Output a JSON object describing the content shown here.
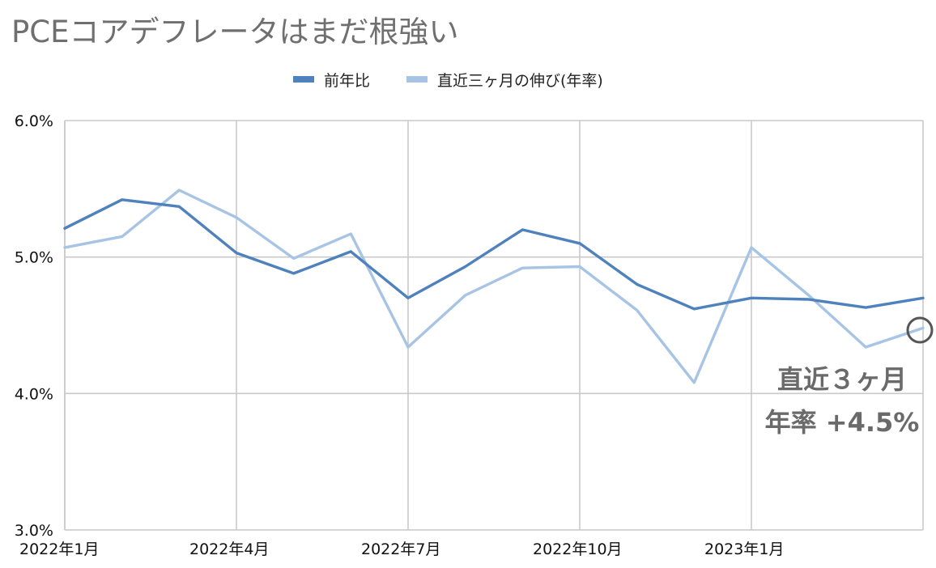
{
  "chart_data": {
    "type": "line",
    "title": "PCEコアデフレータはまだ根強い",
    "x": [
      "2022年1月",
      "2022年2月",
      "2022年3月",
      "2022年4月",
      "2022年5月",
      "2022年6月",
      "2022年7月",
      "2022年8月",
      "2022年9月",
      "2022年10月",
      "2022年11月",
      "2022年12月",
      "2023年1月",
      "2023年2月",
      "2023年3月",
      "2023年4月"
    ],
    "x_tick_labels": [
      "2022年1月",
      "2022年4月",
      "2022年7月",
      "2022年10月",
      "2023年1月"
    ],
    "series": [
      {
        "name": "前年比",
        "color": "#4f81bd",
        "values": [
          5.21,
          5.42,
          5.37,
          5.03,
          4.88,
          5.04,
          4.7,
          4.93,
          5.2,
          5.1,
          4.8,
          4.62,
          4.7,
          4.69,
          4.63,
          4.7
        ]
      },
      {
        "name": "直近三ヶ月の伸び(年率)",
        "color": "#a8c4e5",
        "values": [
          5.07,
          5.15,
          5.49,
          5.29,
          4.99,
          5.17,
          4.34,
          4.72,
          4.92,
          4.93,
          4.61,
          4.08,
          5.07,
          4.72,
          4.34,
          4.48
        ]
      }
    ],
    "y_tick_labels": [
      "6.0%",
      "5.0%",
      "4.0%",
      "3.0%"
    ],
    "ylim": [
      3.0,
      6.0
    ],
    "grid": true,
    "legend_position": "top-center",
    "annotation": {
      "line1": "直近３ヶ月",
      "line2": "年率 +4.5%",
      "color": "#666666"
    }
  }
}
